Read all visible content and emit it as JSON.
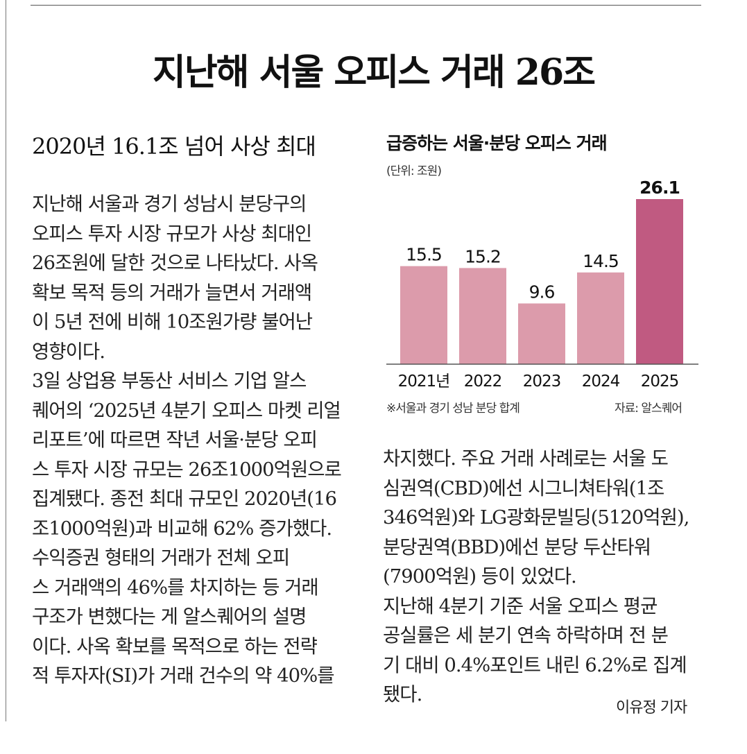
{
  "article": {
    "headline": "지난해 서울 오피스 거래 26조",
    "subheadline": "2020년 16.1조 넘어 사상 최대",
    "left_column_lines": [
      "지난해 서울과 경기 성남시 분당구의",
      "오피스 투자 시장 규모가 사상 최대인",
      "26조원에 달한 것으로 나타났다. 사옥",
      "확보 목적 등의 거래가 늘면서 거래액",
      "이 5년 전에 비해 10조원가량 불어난",
      "영향이다.",
      "  3일 상업용 부동산 서비스 기업 알스",
      "퀘어의 ‘2025년 4분기 오피스 마켓 리얼",
      "리포트’에 따르면 작년 서울·분당 오피",
      "스 투자 시장 규모는 26조1000억원으로",
      "집계됐다. 종전 최대 규모인 2020년(16",
      "조1000억원)과 비교해 62% 증가했다.",
      "  수익증권 형태의 거래가 전체 오피",
      "스 거래액의 46%를 차지하는 등 거래",
      "구조가 변했다는 게 알스퀘어의 설명",
      "이다. 사옥 확보를 목적으로 하는 전략",
      "적 투자자(SI)가 거래 건수의 약 40%를"
    ],
    "right_column_lines": [
      "차지했다. 주요 거래 사례로는 서울 도",
      "심권역(CBD)에선 시그니쳐타워(1조",
      "346억원)와 LG광화문빌딩(5120억원),",
      "분당권역(BBD)에선 분당 두산타워",
      "(7900억원) 등이 있었다.",
      "  지난해 4분기 기준 서울 오피스 평균",
      "공실률은 세 분기 연속 하락하며 전 분",
      "기 대비 0.4%포인트 내린 6.2%로 집계",
      "됐다."
    ],
    "byline": "이유정 기자"
  },
  "chart_data": {
    "type": "bar",
    "title": "급증하는 서울·분당 오피스 거래",
    "unit": "(단위: 조원)",
    "categories": [
      "2021년",
      "2022",
      "2023",
      "2024",
      "2025"
    ],
    "values": [
      15.5,
      15.2,
      9.6,
      14.5,
      26.1
    ],
    "value_labels": [
      "15.5",
      "15.2",
      "9.6",
      "14.5",
      "26.1"
    ],
    "highlight_index": 4,
    "colors": {
      "bar": "#dc9bab",
      "highlight": "#c05a81",
      "axis": "#555555"
    },
    "ylim": [
      0,
      26.1
    ],
    "grid": false,
    "note": "※서울과 경기 성남 분당 합계",
    "source": "자료: 알스퀘어"
  }
}
